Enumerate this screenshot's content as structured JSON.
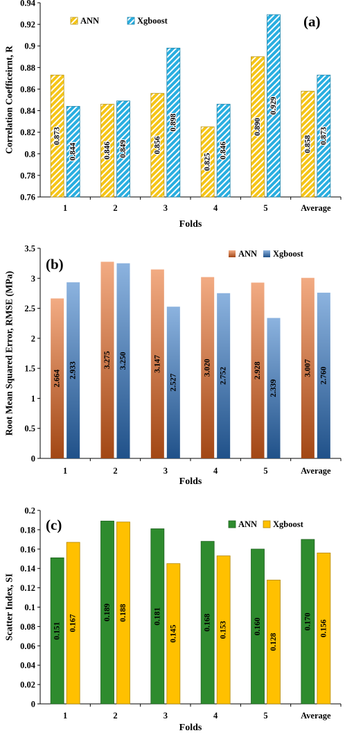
{
  "colors": {
    "ann_a": "#F5C518",
    "xgb_a": "#29AEE0",
    "ann_b": "#E8661E",
    "xgb_b": "#2E74C4",
    "ann_c": "#2E8B2E",
    "xgb_c": "#FFC000"
  },
  "chart_data": [
    {
      "type": "bar",
      "panel_label": "(a)",
      "title": "",
      "xlabel": "Folds",
      "ylabel": "Correlation Coefficeirnt, R",
      "categories": [
        "1",
        "2",
        "3",
        "4",
        "5",
        "Average"
      ],
      "ylim": [
        0.76,
        0.94
      ],
      "yticks": [
        "0.76",
        "0.78",
        "0.8",
        "0.82",
        "0.84",
        "0.86",
        "0.88",
        "0.9",
        "0.92",
        "0.94"
      ],
      "grid": false,
      "legend": "top-left",
      "series": [
        {
          "name": "ANN",
          "values": [
            0.873,
            0.846,
            0.856,
            0.825,
            0.89,
            0.858
          ],
          "labels": [
            "0.873",
            "0.846",
            "0.856",
            "0.825",
            "0.890",
            "0.858"
          ]
        },
        {
          "name": "Xgboost",
          "values": [
            0.844,
            0.849,
            0.898,
            0.846,
            0.929,
            0.873
          ],
          "labels": [
            "0.844",
            "0.849",
            "0.898",
            "0.846",
            "0.929",
            "0.873"
          ]
        }
      ]
    },
    {
      "type": "bar",
      "panel_label": "(b)",
      "title": "",
      "xlabel": "Folds",
      "ylabel": "Root Mean Squared Error, RMSE (MPa)",
      "categories": [
        "1",
        "2",
        "3",
        "4",
        "5",
        "Average"
      ],
      "ylim": [
        0,
        3.5
      ],
      "yticks": [
        "0",
        "0.5",
        "1",
        "1.5",
        "2",
        "2.5",
        "3",
        "3.5"
      ],
      "grid": false,
      "legend": "top-right",
      "series": [
        {
          "name": "ANN",
          "values": [
            2.664,
            3.275,
            3.147,
            3.02,
            2.928,
            3.007
          ],
          "labels": [
            "2.664",
            "3.275",
            "3.147",
            "3.020",
            "2.928",
            "3.007"
          ]
        },
        {
          "name": "Xgboost",
          "values": [
            2.933,
            3.25,
            2.527,
            2.752,
            2.339,
            2.76
          ],
          "labels": [
            "2.933",
            "3.250",
            "2.527",
            "2.752",
            "2.339",
            "2.760"
          ]
        }
      ]
    },
    {
      "type": "bar",
      "panel_label": "(c)",
      "title": "",
      "xlabel": "Folds",
      "ylabel": "Scatter Index, SI",
      "categories": [
        "1",
        "2",
        "3",
        "4",
        "5",
        "Average"
      ],
      "ylim": [
        0,
        0.2
      ],
      "yticks": [
        "0",
        "0.02",
        "0.04",
        "0.06",
        "0.08",
        "0.1",
        "0.12",
        "0.14",
        "0.16",
        "0.18",
        "0.2"
      ],
      "grid": false,
      "legend": "top-right",
      "series": [
        {
          "name": "ANN",
          "values": [
            0.151,
            0.189,
            0.181,
            0.168,
            0.16,
            0.17
          ],
          "labels": [
            "0.151",
            "0.189",
            "0.181",
            "0.168",
            "0.160",
            "0.170"
          ]
        },
        {
          "name": "Xgboost",
          "values": [
            0.167,
            0.188,
            0.145,
            0.153,
            0.128,
            0.156
          ],
          "labels": [
            "0.167",
            "0.188",
            "0.145",
            "0.153",
            "0.128",
            "0.156"
          ]
        }
      ]
    }
  ]
}
